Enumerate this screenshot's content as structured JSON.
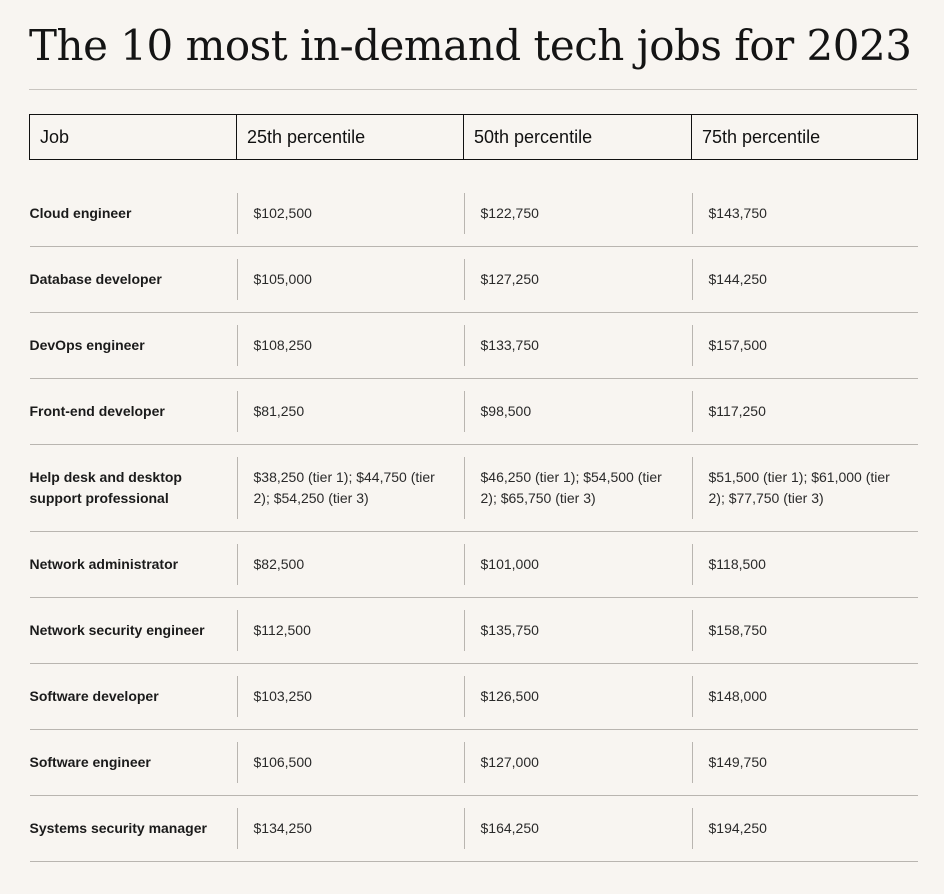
{
  "title": "The 10 most in-demand tech jobs for 2023",
  "table": {
    "headers": [
      "Job",
      "25th percentile",
      "50th percentile",
      "75th percentile"
    ],
    "rows": [
      {
        "job": "Cloud engineer",
        "p25": "$102,500",
        "p50": "$122,750",
        "p75": "$143,750"
      },
      {
        "job": "Database developer",
        "p25": "$105,000",
        "p50": "$127,250",
        "p75": "$144,250"
      },
      {
        "job": "DevOps engineer",
        "p25": "$108,250",
        "p50": "$133,750",
        "p75": "$157,500"
      },
      {
        "job": "Front-end developer",
        "p25": "$81,250",
        "p50": "$98,500",
        "p75": "$117,250"
      },
      {
        "job": "Help desk and desktop support professional",
        "p25": "$38,250 (tier 1); $44,750 (tier 2); $54,250 (tier 3)",
        "p50": "$46,250 (tier 1); $54,500 (tier 2); $65,750 (tier 3)",
        "p75": "$51,500 (tier 1); $61,000 (tier 2); $77,750 (tier 3)"
      },
      {
        "job": "Network administrator",
        "p25": "$82,500",
        "p50": "$101,000",
        "p75": "$118,500"
      },
      {
        "job": "Network security engineer",
        "p25": "$112,500",
        "p50": "$135,750",
        "p75": "$158,750"
      },
      {
        "job": "Software developer",
        "p25": "$103,250",
        "p50": "$126,500",
        "p75": "$148,000"
      },
      {
        "job": "Software engineer",
        "p25": "$106,500",
        "p50": "$127,000",
        "p75": "$149,750"
      },
      {
        "job": "Systems security manager",
        "p25": "$134,250",
        "p50": "$164,250",
        "p75": "$194,250"
      }
    ]
  }
}
